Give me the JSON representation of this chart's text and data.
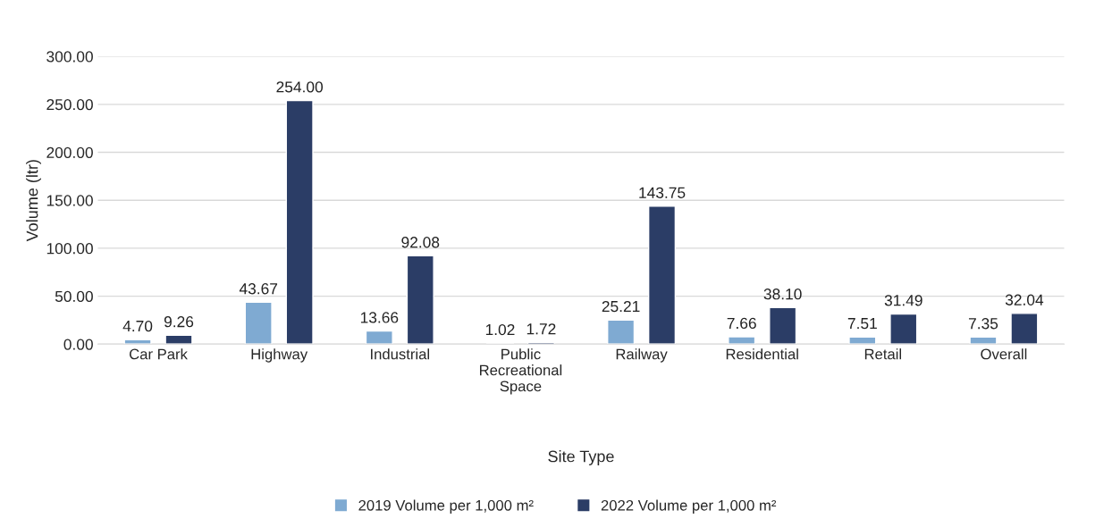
{
  "chart_data": {
    "type": "bar",
    "xlabel": "Site Type",
    "ylabel": "Volume (ltr)",
    "categories": [
      "Car Park",
      "Highway",
      "Industrial",
      "Public\nRecreational\nSpace",
      "Railway",
      "Residential",
      "Retail",
      "Overall"
    ],
    "series": [
      {
        "name": "2019 Volume per 1,000 m²",
        "color": "#7faad2",
        "values": [
          4.7,
          43.67,
          13.66,
          1.02,
          25.21,
          7.66,
          7.51,
          7.35
        ],
        "value_labels": [
          "4.70",
          "43.67",
          "13.66",
          "1.02",
          "25.21",
          "7.66",
          "7.51",
          "7.35"
        ]
      },
      {
        "name": "2022 Volume per 1,000 m²",
        "color": "#2b3d66",
        "values": [
          9.26,
          254.0,
          92.08,
          1.72,
          143.75,
          38.1,
          31.49,
          32.04
        ],
        "value_labels": [
          "9.26",
          "254.00",
          "92.08",
          "1.72",
          "143.75",
          "38.10",
          "31.49",
          "32.04"
        ]
      }
    ],
    "ylim": [
      0,
      300
    ],
    "yticks": [
      {
        "value": 0,
        "label": "0.00"
      },
      {
        "value": 50,
        "label": "50.00"
      },
      {
        "value": 100,
        "label": "100.00"
      },
      {
        "value": 150,
        "label": "150.00"
      },
      {
        "value": 200,
        "label": "200.00"
      },
      {
        "value": 250,
        "label": "250.00"
      },
      {
        "value": 300,
        "label": "300.00"
      }
    ],
    "grid": "y",
    "legend": "bottom"
  }
}
